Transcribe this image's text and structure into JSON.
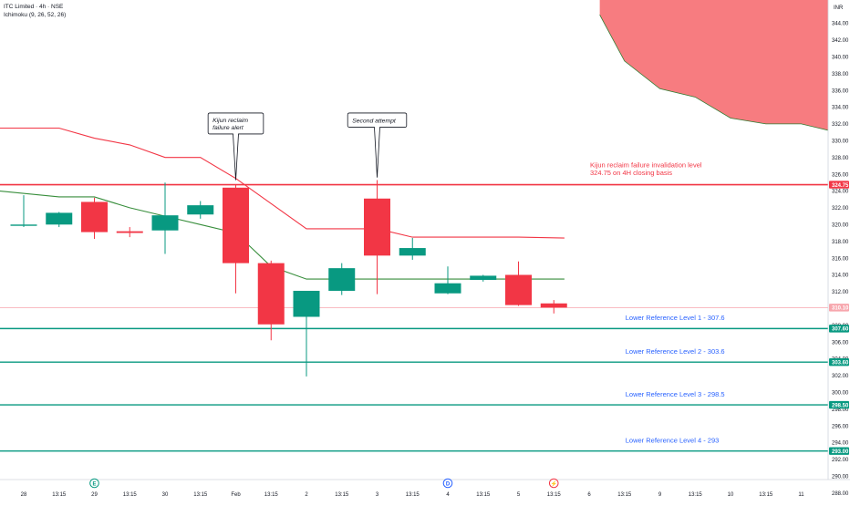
{
  "header": {
    "symbol_line": "ITC Limited · 4h · NSE",
    "indicator_line": "Ichimoku (9, 26, 52, 26)"
  },
  "chart_data": {
    "type": "candlestick",
    "currency": "INR",
    "y_range": [
      287,
      345
    ],
    "y_ticks": [
      288,
      290,
      292,
      294,
      296,
      298,
      300,
      302,
      304,
      306,
      308,
      310,
      312,
      314,
      316,
      318,
      320,
      322,
      324,
      326,
      328,
      330,
      332,
      334,
      336,
      338,
      340,
      342,
      344
    ],
    "x_ticks": [
      {
        "i": 0,
        "label": "28"
      },
      {
        "i": 1,
        "label": "13:15"
      },
      {
        "i": 2,
        "label": "29"
      },
      {
        "i": 3,
        "label": "13:15"
      },
      {
        "i": 4,
        "label": "30"
      },
      {
        "i": 5,
        "label": "13:15"
      },
      {
        "i": 6,
        "label": "Feb"
      },
      {
        "i": 7,
        "label": "13:15"
      },
      {
        "i": 8,
        "label": "2"
      },
      {
        "i": 9,
        "label": "13:15"
      },
      {
        "i": 10,
        "label": "3"
      },
      {
        "i": 11,
        "label": "13:15"
      },
      {
        "i": 12,
        "label": "4"
      },
      {
        "i": 13,
        "label": "13:15"
      },
      {
        "i": 14,
        "label": "5"
      },
      {
        "i": 15,
        "label": "13:15"
      },
      {
        "i": 16,
        "label": "6"
      },
      {
        "i": 17,
        "label": "13:15"
      },
      {
        "i": 18,
        "label": "9"
      },
      {
        "i": 19,
        "label": "13:15"
      },
      {
        "i": 20,
        "label": "10"
      },
      {
        "i": 21,
        "label": "13:15"
      },
      {
        "i": 22,
        "label": "11"
      }
    ],
    "candles": [
      {
        "i": 0,
        "o": 319.9,
        "h": 323.5,
        "l": 319.7,
        "c": 320.0
      },
      {
        "i": 1,
        "o": 320.0,
        "h": 321.5,
        "l": 319.7,
        "c": 321.4
      },
      {
        "i": 2,
        "o": 322.7,
        "h": 323.2,
        "l": 318.3,
        "c": 319.1
      },
      {
        "i": 3,
        "o": 319.2,
        "h": 319.7,
        "l": 318.5,
        "c": 319.0
      },
      {
        "i": 4,
        "o": 319.3,
        "h": 325.0,
        "l": 316.5,
        "c": 321.1
      },
      {
        "i": 5,
        "o": 321.2,
        "h": 322.8,
        "l": 320.7,
        "c": 322.3
      },
      {
        "i": 6,
        "o": 324.4,
        "h": 324.7,
        "l": 311.8,
        "c": 315.4
      },
      {
        "i": 7,
        "o": 315.4,
        "h": 315.7,
        "l": 306.2,
        "c": 308.1
      },
      {
        "i": 8,
        "o": 309.0,
        "h": 312.0,
        "l": 301.9,
        "c": 312.1
      },
      {
        "i": 9,
        "o": 312.1,
        "h": 315.4,
        "l": 311.6,
        "c": 314.8
      },
      {
        "i": 10,
        "o": 323.1,
        "h": 325.3,
        "l": 311.7,
        "c": 316.3
      },
      {
        "i": 11,
        "o": 316.3,
        "h": 318.4,
        "l": 315.8,
        "c": 317.2
      },
      {
        "i": 12,
        "o": 311.8,
        "h": 315.0,
        "l": 311.7,
        "c": 313.0
      },
      {
        "i": 13,
        "o": 313.4,
        "h": 314.0,
        "l": 313.2,
        "c": 313.9
      },
      {
        "i": 14,
        "o": 314.0,
        "h": 315.6,
        "l": 310.3,
        "c": 310.4
      },
      {
        "i": 15,
        "o": 310.6,
        "h": 311.0,
        "l": 309.4,
        "c": 310.1
      }
    ],
    "kijun_line": [
      [
        -0.7,
        331.5
      ],
      [
        1,
        331.5
      ],
      [
        2,
        330.3
      ],
      [
        3,
        329.5
      ],
      [
        4,
        328.0
      ],
      [
        5,
        328.0
      ],
      [
        6,
        325.5
      ],
      [
        7,
        322.5
      ],
      [
        8,
        319.5
      ],
      [
        9,
        319.5
      ],
      [
        10,
        319.5
      ],
      [
        11,
        318.5
      ],
      [
        12,
        318.5
      ],
      [
        13,
        318.5
      ],
      [
        14,
        318.5
      ],
      [
        15.3,
        318.4
      ]
    ],
    "tenkan_line": [
      [
        -0.7,
        324.0
      ],
      [
        1,
        323.3
      ],
      [
        2,
        323.3
      ],
      [
        3,
        322.0
      ],
      [
        4,
        321.0
      ],
      [
        5,
        320.0
      ],
      [
        6,
        319.0
      ],
      [
        7,
        315.0
      ],
      [
        8,
        313.5
      ],
      [
        9,
        313.5
      ],
      [
        10,
        313.5
      ],
      [
        11,
        313.5
      ],
      [
        12,
        313.5
      ],
      [
        13,
        313.5
      ],
      [
        14,
        313.5
      ],
      [
        15.3,
        313.5
      ]
    ],
    "cloud_upper_edge": [
      [
        16.3,
        345
      ],
      [
        17,
        339.5
      ],
      [
        18,
        336.2
      ],
      [
        19,
        335.2
      ],
      [
        20,
        332.7
      ],
      [
        21,
        332.0
      ],
      [
        22,
        332.0
      ],
      [
        23.2,
        330.8
      ]
    ],
    "levels": [
      {
        "value": 324.75,
        "label": "324.75",
        "color": "#f23645",
        "width": 1.6
      },
      {
        "value": 310.1,
        "label": "310.10",
        "color": "#f7a6ad",
        "width": 0.7
      },
      {
        "value": 307.6,
        "label": "307.60",
        "color": "#089981",
        "width": 1.4
      },
      {
        "value": 303.6,
        "label": "303.60",
        "color": "#089981",
        "width": 1.4
      },
      {
        "value": 298.5,
        "label": "298.50",
        "color": "#089981",
        "width": 1.4
      },
      {
        "value": 293.0,
        "label": "293.00",
        "color": "#089981",
        "width": 1.4
      }
    ],
    "annotations": [
      {
        "lines": [
          "Kijun reclaim failure invalidation level",
          "324.75 on 4H closing basis"
        ],
        "x_index": 16.0,
        "y": 326.8,
        "color": "#f23645"
      },
      {
        "lines": [
          "Lower Reference Level 1 - 307.6"
        ],
        "x_index": 17.0,
        "y": 308.6,
        "color": "#2962ff"
      },
      {
        "lines": [
          "Lower Reference Level 2 - 303.6"
        ],
        "x_index": 17.0,
        "y": 304.6,
        "color": "#2962ff"
      },
      {
        "lines": [
          "Lower Reference Level 3 - 298.5"
        ],
        "x_index": 17.0,
        "y": 299.5,
        "color": "#2962ff"
      },
      {
        "lines": [
          "Lower Reference Level 4 - 293"
        ],
        "x_index": 17.0,
        "y": 294.0,
        "color": "#2962ff"
      }
    ],
    "callouts": [
      {
        "lines": [
          "Kijun reclaim",
          "failure alert"
        ],
        "x_index": 6.0,
        "box_top": 333.3,
        "box_bottom": 330.8,
        "tip": 325.3
      },
      {
        "lines": [
          "Second attempt"
        ],
        "x_index": 10.0,
        "box_top": 333.3,
        "box_bottom": 331.6,
        "tip": 325.6
      }
    ],
    "event_markers": [
      {
        "x_index": 2,
        "glyph": "E",
        "color": "#089981"
      },
      {
        "x_index": 12,
        "glyph": "D",
        "color": "#2962ff"
      },
      {
        "x_index": 15,
        "glyph": "⚡",
        "color": "#f23645"
      }
    ],
    "colors": {
      "up": "#089981",
      "down": "#f23645",
      "kijun": "#f23645",
      "tenkan": "#388e3c",
      "cloud": "#f77c80"
    }
  }
}
